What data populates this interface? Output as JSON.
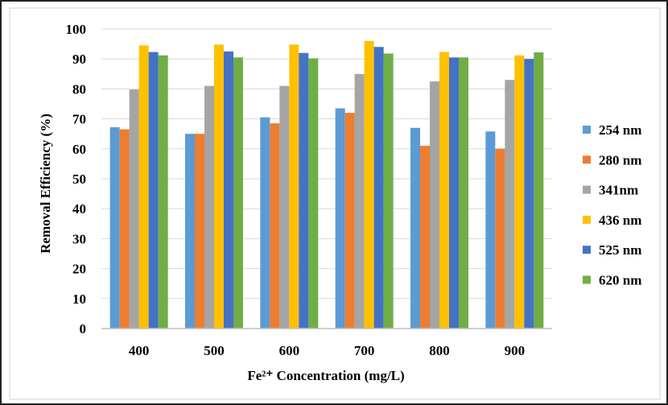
{
  "chart_data": {
    "type": "bar",
    "title": "",
    "xlabel": "Fe²⁺ Concentration (mg/L)",
    "ylabel": "Removal  Efficiency (%)",
    "categories": [
      "400",
      "500",
      "600",
      "700",
      "800",
      "900"
    ],
    "ylim": [
      0,
      100
    ],
    "yticks": [
      0,
      10,
      20,
      30,
      40,
      50,
      60,
      70,
      80,
      90,
      100
    ],
    "grid": "horizontal",
    "legend_position": "right",
    "series": [
      {
        "name": "254 nm",
        "color": "#5b9bd5",
        "values": [
          67.2,
          65.0,
          70.5,
          73.5,
          67.0,
          65.8
        ]
      },
      {
        "name": "280 nm",
        "color": "#ed7d31",
        "values": [
          66.5,
          65.0,
          68.5,
          72.0,
          61.0,
          60.0
        ]
      },
      {
        "name": "341nm",
        "color": "#a5a5a5",
        "values": [
          79.8,
          81.0,
          81.0,
          85.0,
          82.5,
          83.0
        ]
      },
      {
        "name": "436 nm",
        "color": "#ffc000",
        "values": [
          94.5,
          94.8,
          94.8,
          96.0,
          92.3,
          91.2
        ]
      },
      {
        "name": "525 nm",
        "color": "#4472c4",
        "values": [
          92.3,
          92.5,
          92.0,
          94.0,
          90.5,
          90.0
        ]
      },
      {
        "name": "620 nm",
        "color": "#70ad47",
        "values": [
          91.2,
          90.5,
          90.2,
          91.8,
          90.5,
          92.2
        ]
      }
    ]
  }
}
